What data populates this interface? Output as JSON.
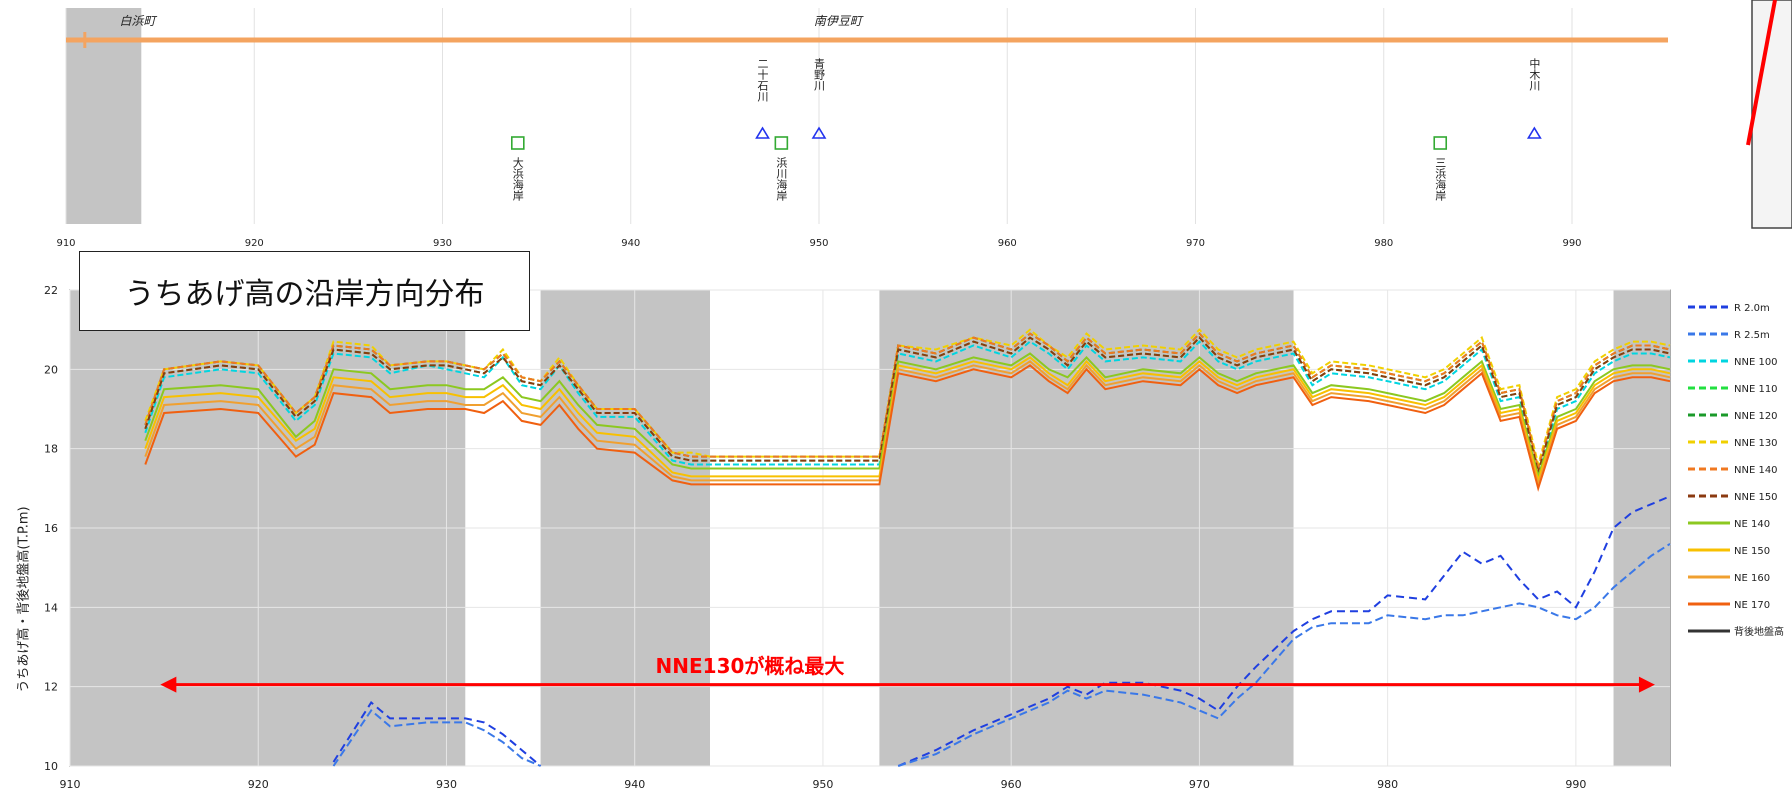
{
  "annotation_box": "うちあげ高の沿岸方向分布",
  "arrow_label": "NNE130が概ね最大",
  "colors": {
    "arrow": "#ff0000",
    "band": "#c4c4c4",
    "baseline": "#f4a460"
  },
  "top_strip": {
    "type": "map-strip",
    "region_labels": [
      "白浜町",
      "南伊豆町"
    ],
    "x_ticks": [
      "910",
      "920",
      "930",
      "940",
      "950",
      "960",
      "970",
      "980",
      "990"
    ],
    "features": [
      {
        "km": 934,
        "label": "大浜海岸",
        "symbol": "square"
      },
      {
        "km": 947,
        "label": "二十石川",
        "symbol": "triangle"
      },
      {
        "km": 948,
        "label": "浜川海岸",
        "symbol": "square"
      },
      {
        "km": 950,
        "label": "青野川",
        "symbol": "triangle"
      },
      {
        "km": 983,
        "label": "三浜海岸",
        "symbol": "square"
      },
      {
        "km": 988,
        "label": "中木川",
        "symbol": "triangle"
      }
    ]
  },
  "chart_data": {
    "type": "line",
    "xlabel": "",
    "ylabel": "うちあげ高・背後地盤高(T.P.m)",
    "xlim": [
      910,
      995
    ],
    "ylim": [
      10,
      22
    ],
    "x_ticks": [
      "910",
      "920",
      "930",
      "940",
      "950",
      "960",
      "970",
      "980",
      "990"
    ],
    "y_ticks": [
      "10",
      "12",
      "14",
      "16",
      "18",
      "20",
      "22"
    ],
    "shaded_ranges": [
      [
        910,
        931
      ],
      [
        935,
        944
      ],
      [
        953,
        975
      ],
      [
        992,
        995
      ]
    ],
    "grid": true,
    "legend_position": "right",
    "x": [
      914,
      915,
      918,
      920,
      922,
      923,
      924,
      926,
      927,
      929,
      930,
      931,
      932,
      933,
      934,
      935,
      936,
      937,
      938,
      940,
      942,
      943,
      944,
      948,
      952,
      953,
      954,
      956,
      958,
      960,
      961,
      962,
      963,
      964,
      965,
      967,
      969,
      970,
      971,
      972,
      973,
      975,
      976,
      977,
      979,
      980,
      982,
      983,
      984,
      985,
      986,
      987,
      988,
      989,
      990,
      991,
      992,
      993,
      994,
      995
    ],
    "series": [
      {
        "name": "R 2.0m",
        "color": "#1f3fe0",
        "dash": "8 5",
        "values": [
          null,
          null,
          null,
          null,
          null,
          null,
          10.1,
          11.6,
          11.2,
          11.2,
          11.2,
          11.2,
          11.1,
          10.8,
          10.4,
          10.0,
          null,
          null,
          null,
          null,
          null,
          null,
          null,
          null,
          null,
          null,
          10.0,
          10.4,
          10.9,
          11.3,
          11.5,
          11.7,
          12.0,
          11.8,
          12.1,
          12.1,
          11.9,
          11.7,
          11.4,
          12.0,
          12.5,
          13.4,
          13.7,
          13.9,
          13.9,
          14.3,
          14.2,
          14.8,
          15.4,
          15.1,
          15.3,
          14.7,
          14.2,
          14.4,
          14.0,
          14.9,
          16.0,
          16.4,
          16.6,
          16.8
        ]
      },
      {
        "name": "R 2.5m",
        "color": "#3a78e8",
        "dash": "8 4",
        "values": [
          null,
          null,
          null,
          null,
          null,
          null,
          10.0,
          11.4,
          11.0,
          11.1,
          11.1,
          11.1,
          10.9,
          10.6,
          10.2,
          10.0,
          null,
          null,
          null,
          null,
          null,
          null,
          null,
          null,
          null,
          null,
          10.0,
          10.3,
          10.8,
          11.2,
          11.4,
          11.6,
          11.9,
          11.7,
          11.9,
          11.8,
          11.6,
          11.4,
          11.2,
          11.7,
          12.1,
          13.2,
          13.5,
          13.6,
          13.6,
          13.8,
          13.7,
          13.8,
          13.8,
          13.9,
          14.0,
          14.1,
          14.0,
          13.8,
          13.7,
          14.0,
          14.5,
          14.9,
          15.3,
          15.6
        ]
      },
      {
        "name": "NNE 100",
        "color": "#00d5e0",
        "dash": "6 3",
        "values": [
          18.4,
          19.8,
          20.0,
          19.9,
          18.7,
          19.1,
          20.4,
          20.3,
          19.9,
          20.1,
          20.0,
          19.9,
          19.8,
          20.3,
          19.6,
          19.5,
          20.1,
          19.4,
          18.8,
          18.8,
          17.7,
          17.6,
          17.6,
          17.6,
          17.6,
          17.6,
          20.4,
          20.2,
          20.6,
          20.3,
          20.7,
          20.4,
          20.0,
          20.6,
          20.2,
          20.3,
          20.2,
          20.7,
          20.2,
          20.0,
          20.2,
          20.4,
          19.6,
          19.9,
          19.8,
          19.7,
          19.5,
          19.7,
          20.1,
          20.5,
          19.2,
          19.3,
          17.3,
          19.0,
          19.2,
          19.9,
          20.2,
          20.4,
          20.4,
          20.3
        ]
      },
      {
        "name": "NNE 110",
        "color": "#22e040",
        "dash": "6 3",
        "values": [
          18.5,
          19.9,
          20.1,
          20.0,
          18.8,
          19.2,
          20.5,
          20.4,
          20.0,
          20.1,
          20.1,
          20.0,
          19.9,
          20.3,
          19.7,
          19.6,
          20.1,
          19.5,
          18.9,
          18.9,
          17.8,
          17.7,
          17.7,
          17.7,
          17.7,
          17.7,
          20.5,
          20.3,
          20.7,
          20.4,
          20.8,
          20.5,
          20.1,
          20.7,
          20.3,
          20.4,
          20.3,
          20.8,
          20.3,
          20.1,
          20.3,
          20.5,
          19.7,
          20.0,
          19.9,
          19.8,
          19.6,
          19.8,
          20.2,
          20.6,
          19.3,
          19.4,
          17.4,
          19.1,
          19.3,
          20.0,
          20.3,
          20.5,
          20.5,
          20.4
        ]
      },
      {
        "name": "NNE 120",
        "color": "#1a9a2a",
        "dash": "6 3",
        "values": [
          18.6,
          20.0,
          20.2,
          20.1,
          18.9,
          19.3,
          20.6,
          20.5,
          20.1,
          20.2,
          20.2,
          20.1,
          20.0,
          20.4,
          19.8,
          19.7,
          20.2,
          19.6,
          19.0,
          19.0,
          17.9,
          17.8,
          17.8,
          17.8,
          17.8,
          17.8,
          20.6,
          20.4,
          20.8,
          20.5,
          20.9,
          20.6,
          20.2,
          20.8,
          20.4,
          20.5,
          20.4,
          20.9,
          20.4,
          20.2,
          20.4,
          20.6,
          19.8,
          20.1,
          20.0,
          19.9,
          19.7,
          19.9,
          20.3,
          20.7,
          19.4,
          19.5,
          17.5,
          19.2,
          19.4,
          20.1,
          20.4,
          20.6,
          20.6,
          20.5
        ]
      },
      {
        "name": "NNE 130",
        "color": "#f0d000",
        "dash": "6 3",
        "values": [
          18.7,
          20.0,
          20.2,
          20.1,
          18.9,
          19.3,
          20.7,
          20.6,
          20.1,
          20.2,
          20.2,
          20.1,
          20.0,
          20.5,
          19.8,
          19.7,
          20.3,
          19.6,
          19.0,
          19.0,
          17.9,
          17.9,
          17.8,
          17.8,
          17.8,
          17.8,
          20.6,
          20.5,
          20.8,
          20.6,
          21.0,
          20.6,
          20.3,
          20.9,
          20.5,
          20.6,
          20.5,
          21.0,
          20.5,
          20.3,
          20.5,
          20.7,
          19.9,
          20.2,
          20.1,
          20.0,
          19.8,
          20.0,
          20.4,
          20.8,
          19.5,
          19.6,
          17.6,
          19.3,
          19.5,
          20.2,
          20.5,
          20.7,
          20.7,
          20.6
        ]
      },
      {
        "name": "NNE 140",
        "color": "#f07820",
        "dash": "6 3",
        "values": [
          18.6,
          20.0,
          20.2,
          20.1,
          18.9,
          19.3,
          20.6,
          20.5,
          20.1,
          20.2,
          20.2,
          20.1,
          20.0,
          20.4,
          19.8,
          19.7,
          20.2,
          19.6,
          19.0,
          19.0,
          17.9,
          17.8,
          17.8,
          17.8,
          17.8,
          17.8,
          20.6,
          20.4,
          20.8,
          20.5,
          20.9,
          20.6,
          20.2,
          20.8,
          20.4,
          20.5,
          20.4,
          20.9,
          20.4,
          20.2,
          20.4,
          20.6,
          19.8,
          20.1,
          20.0,
          19.9,
          19.7,
          19.9,
          20.3,
          20.7,
          19.4,
          19.5,
          17.5,
          19.2,
          19.4,
          20.1,
          20.4,
          20.6,
          20.6,
          20.5
        ]
      },
      {
        "name": "NNE 150",
        "color": "#8b3a10",
        "dash": "6 3",
        "values": [
          18.5,
          19.9,
          20.1,
          20.0,
          18.8,
          19.2,
          20.5,
          20.4,
          20.0,
          20.1,
          20.1,
          20.0,
          19.9,
          20.3,
          19.7,
          19.6,
          20.1,
          19.5,
          18.9,
          18.9,
          17.8,
          17.7,
          17.7,
          17.7,
          17.7,
          17.7,
          20.5,
          20.3,
          20.7,
          20.4,
          20.8,
          20.5,
          20.1,
          20.7,
          20.3,
          20.4,
          20.3,
          20.8,
          20.3,
          20.1,
          20.3,
          20.5,
          19.7,
          20.0,
          19.9,
          19.8,
          19.6,
          19.8,
          20.2,
          20.6,
          19.3,
          19.4,
          17.4,
          19.1,
          19.3,
          20.0,
          20.3,
          20.5,
          20.5,
          20.4
        ]
      },
      {
        "name": "NE 140",
        "color": "#8cc820",
        "dash": "",
        "values": [
          18.2,
          19.5,
          19.6,
          19.5,
          18.3,
          18.7,
          20.0,
          19.9,
          19.5,
          19.6,
          19.6,
          19.5,
          19.5,
          19.8,
          19.3,
          19.2,
          19.7,
          19.1,
          18.6,
          18.5,
          17.6,
          17.5,
          17.5,
          17.5,
          17.5,
          17.5,
          20.2,
          20.0,
          20.3,
          20.1,
          20.4,
          20.0,
          19.8,
          20.3,
          19.8,
          20.0,
          19.9,
          20.3,
          19.9,
          19.7,
          19.9,
          20.1,
          19.4,
          19.6,
          19.5,
          19.4,
          19.2,
          19.4,
          19.8,
          20.2,
          19.0,
          19.1,
          17.3,
          18.8,
          19.0,
          19.7,
          20.0,
          20.1,
          20.1,
          20.0
        ]
      },
      {
        "name": "NE 150",
        "color": "#f8c000",
        "dash": "",
        "values": [
          18.0,
          19.3,
          19.4,
          19.3,
          18.2,
          18.5,
          19.8,
          19.7,
          19.3,
          19.4,
          19.4,
          19.3,
          19.3,
          19.6,
          19.1,
          19.0,
          19.5,
          18.9,
          18.4,
          18.3,
          17.4,
          17.3,
          17.3,
          17.3,
          17.3,
          17.3,
          20.1,
          19.9,
          20.2,
          20.0,
          20.3,
          19.9,
          19.6,
          20.2,
          19.7,
          19.9,
          19.8,
          20.2,
          19.8,
          19.6,
          19.8,
          20.0,
          19.3,
          19.5,
          19.4,
          19.3,
          19.1,
          19.3,
          19.7,
          20.1,
          18.9,
          19.0,
          17.2,
          18.7,
          18.9,
          19.6,
          19.9,
          20.0,
          20.0,
          19.9
        ]
      },
      {
        "name": "NE 160",
        "color": "#f0a030",
        "dash": "",
        "values": [
          17.8,
          19.1,
          19.2,
          19.1,
          18.0,
          18.3,
          19.6,
          19.5,
          19.1,
          19.2,
          19.2,
          19.1,
          19.1,
          19.4,
          18.9,
          18.8,
          19.3,
          18.7,
          18.2,
          18.1,
          17.3,
          17.2,
          17.2,
          17.2,
          17.2,
          17.2,
          20.0,
          19.8,
          20.1,
          19.9,
          20.2,
          19.8,
          19.5,
          20.1,
          19.6,
          19.8,
          19.7,
          20.1,
          19.7,
          19.5,
          19.7,
          19.9,
          19.2,
          19.4,
          19.3,
          19.2,
          19.0,
          19.2,
          19.6,
          20.0,
          18.8,
          18.9,
          17.1,
          18.6,
          18.8,
          19.5,
          19.8,
          19.9,
          19.9,
          19.8
        ]
      },
      {
        "name": "NE 170",
        "color": "#f06010",
        "dash": "",
        "values": [
          17.6,
          18.9,
          19.0,
          18.9,
          17.8,
          18.1,
          19.4,
          19.3,
          18.9,
          19.0,
          19.0,
          19.0,
          18.9,
          19.2,
          18.7,
          18.6,
          19.1,
          18.5,
          18.0,
          17.9,
          17.2,
          17.1,
          17.1,
          17.1,
          17.1,
          17.1,
          19.9,
          19.7,
          20.0,
          19.8,
          20.1,
          19.7,
          19.4,
          20.0,
          19.5,
          19.7,
          19.6,
          20.0,
          19.6,
          19.4,
          19.6,
          19.8,
          19.1,
          19.3,
          19.2,
          19.1,
          18.9,
          19.1,
          19.5,
          19.9,
          18.7,
          18.8,
          17.0,
          18.5,
          18.7,
          19.4,
          19.7,
          19.8,
          19.8,
          19.7
        ]
      },
      {
        "name": "背後地盤高",
        "color": "#333333",
        "dash": "",
        "values": [
          null,
          null,
          null,
          null,
          null,
          null,
          null,
          null,
          null,
          null,
          null,
          null,
          null,
          null,
          null,
          null,
          null,
          null,
          null,
          null,
          null,
          null,
          null,
          null,
          null,
          null,
          null,
          null,
          null,
          null,
          null,
          null,
          null,
          null,
          null,
          null,
          null,
          null,
          null,
          null,
          null,
          null,
          null,
          null,
          null,
          null,
          null,
          null,
          null,
          null,
          null,
          null,
          null,
          null,
          null,
          null,
          null,
          null,
          null,
          null
        ]
      }
    ]
  }
}
